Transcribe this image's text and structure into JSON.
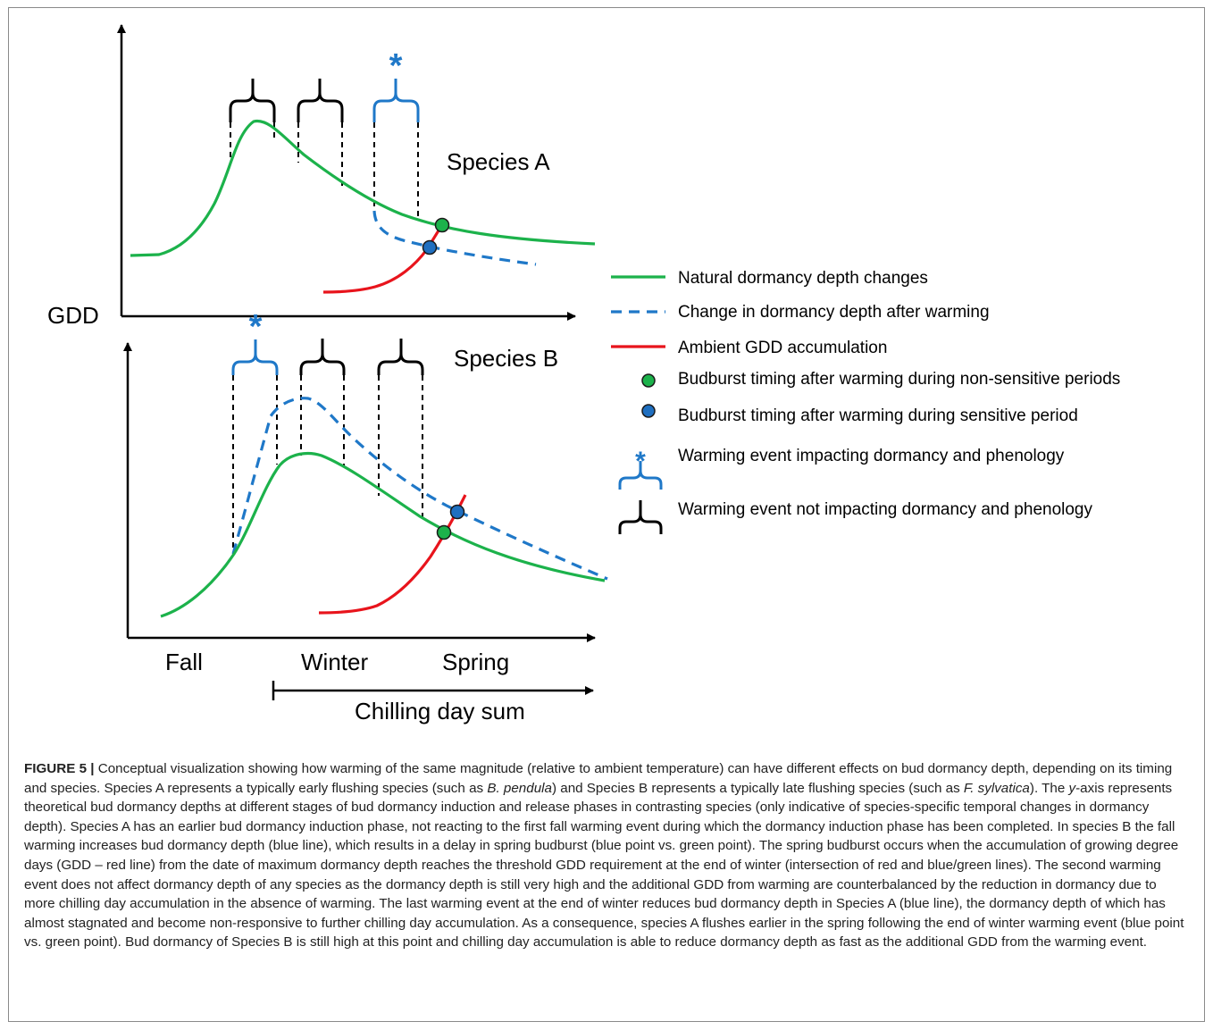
{
  "diagram": {
    "y_axis_label": "GDD",
    "panel_a_title": "Species A",
    "panel_b_title": "Species B",
    "season_labels": [
      "Fall",
      "Winter",
      "Spring"
    ],
    "chilling_label": "Chilling day sum",
    "warming_marker": "*",
    "colors": {
      "natural": "#1cb24b",
      "warming": "#1f78c8",
      "gdd": "#e8141c",
      "neutral_bracket": "#000000"
    }
  },
  "legend": [
    {
      "kind": "solid-green-line",
      "label": "Natural dormancy depth changes"
    },
    {
      "kind": "dashed-blue-line",
      "label": "Change in dormancy depth after warming"
    },
    {
      "kind": "solid-red-line",
      "label": "Ambient GDD accumulation"
    },
    {
      "kind": "green-point",
      "label": "Budburst timing after warming during non-sensitive periods"
    },
    {
      "kind": "blue-point",
      "label": "Budburst timing after warming during sensitive period"
    },
    {
      "kind": "blue-bracket",
      "label": "Warming event impacting dormancy and phenology"
    },
    {
      "kind": "black-bracket",
      "label": "Warming event not impacting dormancy and phenology"
    }
  ],
  "caption": {
    "figure_label": "FIGURE 5 |",
    "text_1": " Conceptual visualization showing how warming of the same magnitude (relative to ambient temperature) can have different effects on bud dormancy depth, depending on its timing and species. Species A represents a typically early flushing species (such as ",
    "species_a_example": "B. pendula",
    "text_2": ") and Species B represents a typically late flushing species (such as ",
    "species_b_example": "F. sylvatica",
    "text_3": "). The ",
    "y_italic": "y",
    "text_4": "-axis represents theoretical bud dormancy depths at different stages of bud dormancy induction and release phases in contrasting species (only indicative of species-specific temporal changes in dormancy depth). Species A has an earlier bud dormancy induction phase, not reacting to the first fall warming event during which the dormancy induction phase has been completed. In species B the fall warming increases bud dormancy depth (blue line), which results in a delay in spring budburst (blue point vs. green point). The spring budburst occurs when the accumulation of growing degree days (GDD – red line) from the date of maximum dormancy depth reaches the threshold GDD requirement at the end of winter (intersection of red and blue/green lines). The second warming event does not affect dormancy depth of any species as the dormancy depth is still very high and the additional GDD from warming are counterbalanced by the reduction in dormancy due to more chilling day accumulation in the absence of warming. The last warming event at the end of winter reduces bud dormancy depth in Species A (blue line), the dormancy depth of which has almost stagnated and become non-responsive to further chilling day accumulation. As a consequence, species A flushes earlier in the spring following the end of winter warming event (blue point vs. green point). Bud dormancy of Species B is still high at this point and chilling day accumulation is able to reduce dormancy depth as fast as the additional GDD from the warming event."
  }
}
